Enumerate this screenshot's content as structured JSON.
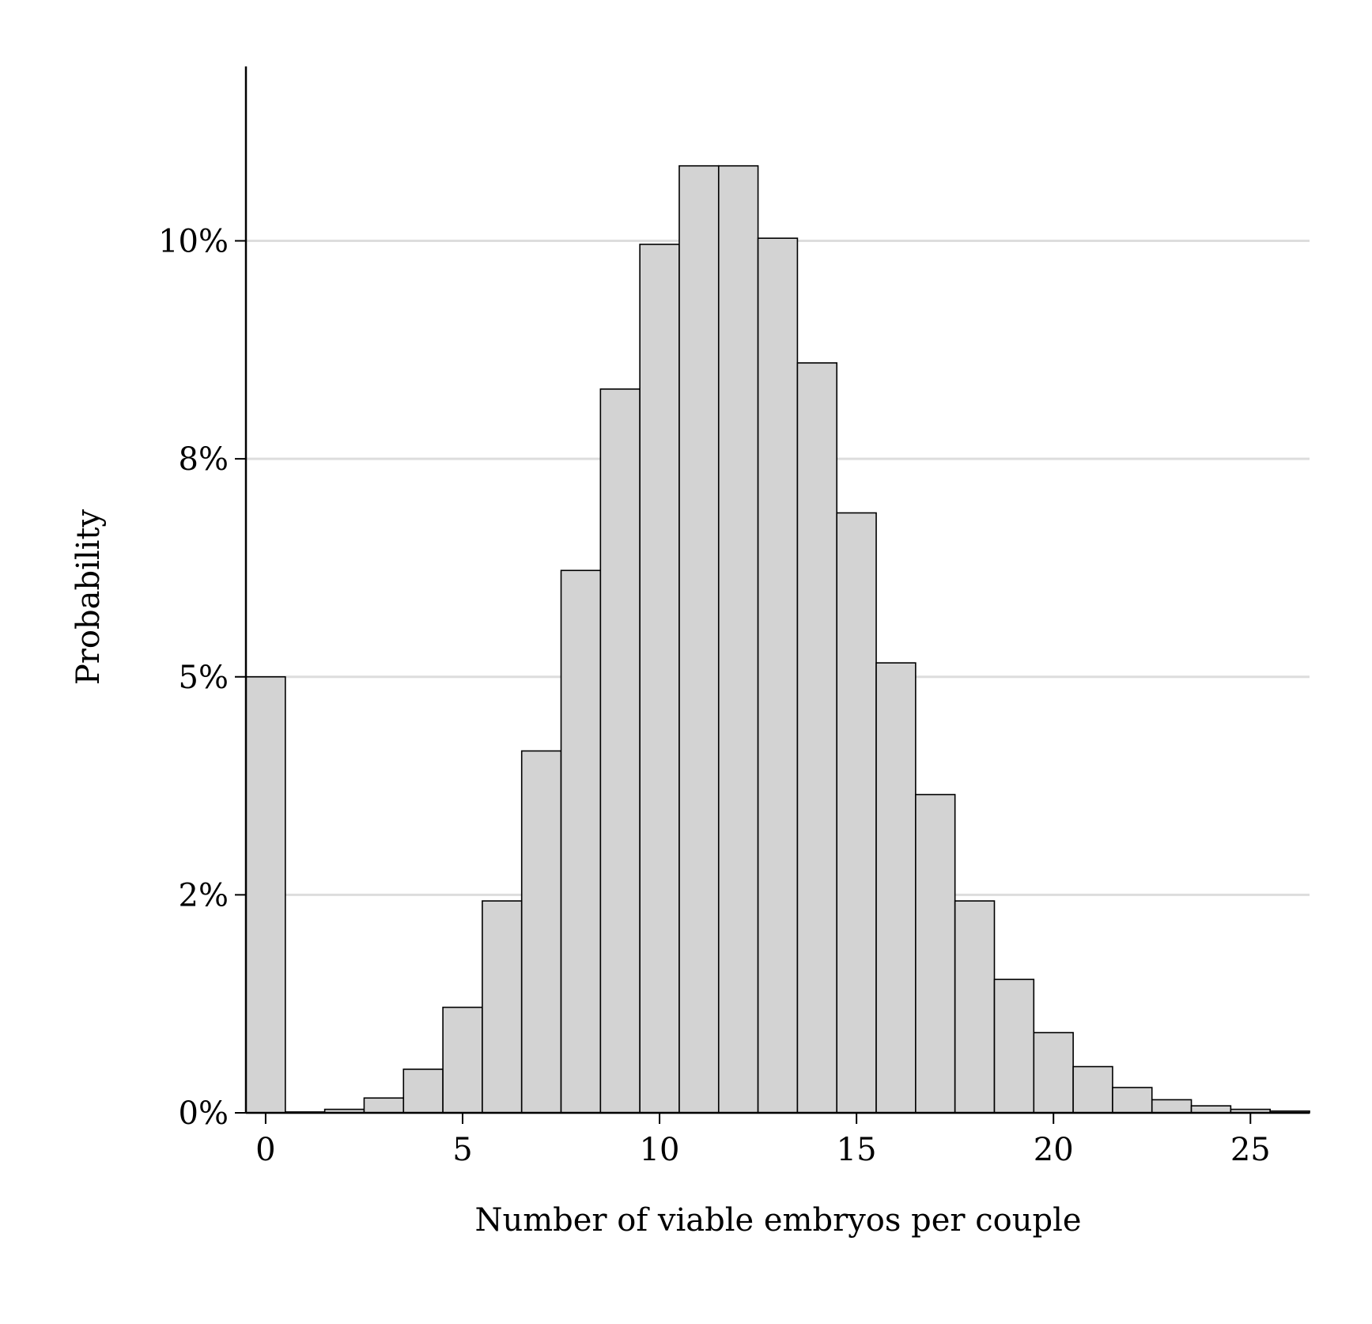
{
  "chart_data": {
    "type": "histogram",
    "x_label": "Number of viable embryos per couple",
    "y_label": "Probability",
    "bins": [
      -0.5,
      0.5,
      1.5,
      2.5,
      3.5,
      4.5,
      5.5,
      6.5,
      7.5,
      8.5,
      9.5,
      10.5,
      11.5,
      12.5,
      13.5,
      14.5,
      15.5,
      16.5,
      17.5,
      18.5,
      19.5,
      20.5,
      21.5,
      22.5,
      23.5,
      24.5,
      25.5,
      26.5
    ],
    "values": [
      5.0,
      0.01,
      0.04,
      0.17,
      0.5,
      1.21,
      2.43,
      4.15,
      6.22,
      8.3,
      9.96,
      10.86,
      10.86,
      10.03,
      8.6,
      6.88,
      5.16,
      3.65,
      2.43,
      1.53,
      0.92,
      0.53,
      0.29,
      0.15,
      0.08,
      0.04,
      0.02
    ],
    "color": "#d3d3d3",
    "edge_color": "#000000",
    "xlim": [
      -0.5,
      26.5
    ],
    "xticks": [
      0,
      5,
      10,
      15,
      20,
      25
    ],
    "ylim": [
      0,
      12
    ],
    "yticks": [
      {
        "value": 0,
        "label": "0%"
      },
      {
        "value": 2.5,
        "label": "2%"
      },
      {
        "value": 5,
        "label": "5%"
      },
      {
        "value": 7.5,
        "label": "8%"
      },
      {
        "value": 10,
        "label": "10%"
      }
    ],
    "grid": true
  }
}
